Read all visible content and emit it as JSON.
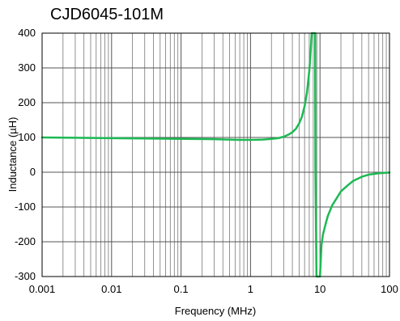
{
  "chart_data": {
    "type": "line",
    "title": "CJD6045-101M",
    "xlabel": "Frequency (MHz)",
    "ylabel": "Inductance (µH)",
    "x_scale": "log",
    "xlim": [
      0.001,
      100
    ],
    "ylim": [
      -300,
      400
    ],
    "x_ticks": [
      "0.001",
      "0.01",
      "0.1",
      "1",
      "10",
      "100"
    ],
    "y_ticks": [
      "400",
      "300",
      "200",
      "100",
      "0",
      "-100",
      "-200",
      "-300"
    ],
    "grid": true,
    "line_color": "#1db954",
    "series": [
      {
        "name": "",
        "points": [
          [
            0.001,
            100
          ],
          [
            0.003,
            99
          ],
          [
            0.01,
            98
          ],
          [
            0.03,
            97
          ],
          [
            0.1,
            96
          ],
          [
            0.3,
            95
          ],
          [
            0.7,
            93
          ],
          [
            1.0,
            93
          ],
          [
            1.5,
            94
          ],
          [
            2.0,
            96
          ],
          [
            2.5,
            98
          ],
          [
            3.0,
            102
          ],
          [
            3.5,
            108
          ],
          [
            4.0,
            115
          ],
          [
            4.5,
            125
          ],
          [
            5.0,
            140
          ],
          [
            5.5,
            160
          ],
          [
            6.0,
            190
          ],
          [
            6.5,
            230
          ],
          [
            7.0,
            290
          ],
          [
            7.3,
            340
          ],
          [
            7.6,
            400
          ],
          [
            8.5,
            400
          ],
          [
            8.6,
            0
          ],
          [
            8.9,
            -300
          ],
          [
            9.5,
            -300
          ],
          [
            10,
            -300
          ],
          [
            10.5,
            -210
          ],
          [
            11,
            -180
          ],
          [
            12,
            -150
          ],
          [
            13,
            -125
          ],
          [
            15,
            -95
          ],
          [
            18,
            -70
          ],
          [
            20,
            -55
          ],
          [
            25,
            -38
          ],
          [
            30,
            -25
          ],
          [
            40,
            -13
          ],
          [
            50,
            -7
          ],
          [
            70,
            -3
          ],
          [
            100,
            -1
          ]
        ]
      }
    ]
  }
}
